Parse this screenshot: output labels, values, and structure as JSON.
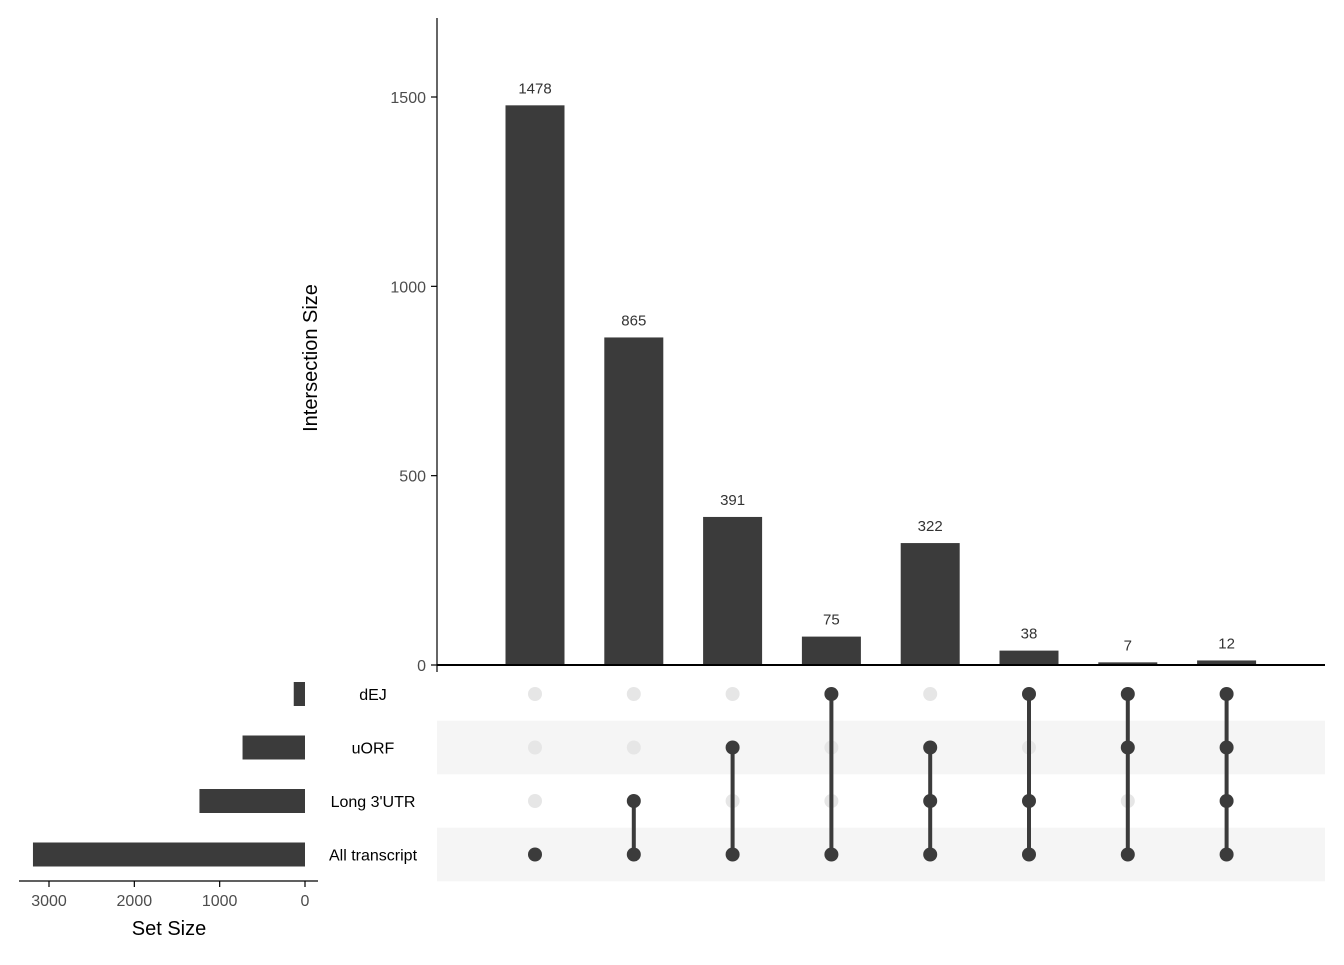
{
  "chart_data": {
    "type": "upset",
    "title": "",
    "intersection_axis": {
      "label": "Intersection Size",
      "ticks": [
        0,
        500,
        1000,
        1500
      ],
      "ylim": [
        0,
        1700
      ]
    },
    "set_size_axis": {
      "label": "Set Size",
      "ticks": [
        3000,
        2000,
        1000,
        0
      ],
      "xlim": [
        3300,
        0
      ]
    },
    "sets": [
      {
        "name": "dEJ",
        "size": 132
      },
      {
        "name": "uORF",
        "size": 732
      },
      {
        "name": "Long 3'UTR",
        "size": 1237
      },
      {
        "name": "All transcript",
        "size": 3188
      }
    ],
    "intersections": [
      {
        "size": 1478,
        "label": "1478",
        "members": [
          "All transcript"
        ]
      },
      {
        "size": 865,
        "label": "865",
        "members": [
          "Long 3'UTR",
          "All transcript"
        ]
      },
      {
        "size": 391,
        "label": "391",
        "members": [
          "uORF",
          "All transcript"
        ]
      },
      {
        "size": 75,
        "label": "75",
        "members": [
          "dEJ",
          "All transcript"
        ]
      },
      {
        "size": 322,
        "label": "322",
        "members": [
          "uORF",
          "Long 3'UTR",
          "All transcript"
        ]
      },
      {
        "size": 38,
        "label": "38",
        "members": [
          "dEJ",
          "Long 3'UTR",
          "All transcript"
        ]
      },
      {
        "size": 7,
        "label": "7",
        "members": [
          "dEJ",
          "uORF",
          "All transcript"
        ]
      },
      {
        "size": 12,
        "label": "12",
        "members": [
          "dEJ",
          "uORF",
          "Long 3'UTR",
          "All transcript"
        ]
      }
    ],
    "colors": {
      "bar": "#3b3b3b",
      "dot_active": "#3b3b3b",
      "dot_inactive": "#e6e6e6",
      "stripe": "#f5f5f5",
      "axis": "#000000",
      "tick_label": "#4d4d4d"
    }
  }
}
